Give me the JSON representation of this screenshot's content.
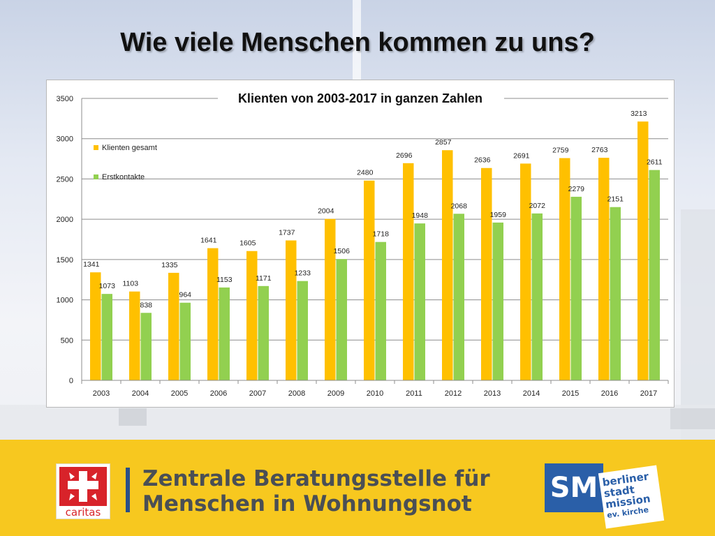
{
  "slide": {
    "title": "Wie viele Menschen kommen zu uns?"
  },
  "chart_data": {
    "type": "bar",
    "title": "Klienten von 2003-2017  in ganzen Zahlen",
    "xlabel": "",
    "ylabel": "",
    "ylim": [
      0,
      3500
    ],
    "yticks": [
      0,
      500,
      1000,
      1500,
      2000,
      2500,
      3000,
      3500
    ],
    "grid": true,
    "legend_position": "top-left",
    "categories": [
      "2003",
      "2004",
      "2005",
      "2006",
      "2007",
      "2008",
      "2009",
      "2010",
      "2011",
      "2012",
      "2013",
      "2014",
      "2015",
      "2016",
      "2017"
    ],
    "series": [
      {
        "name": "Klienten gesamt",
        "color": "#FFC000",
        "values": [
          1341,
          1103,
          1335,
          1641,
          1605,
          1737,
          2004,
          2480,
          2696,
          2857,
          2636,
          2691,
          2759,
          2763,
          3213
        ]
      },
      {
        "name": "Erstkontakte",
        "color": "#92D050",
        "values": [
          1073,
          838,
          964,
          1153,
          1171,
          1233,
          1506,
          1718,
          1948,
          2068,
          1959,
          2072,
          2279,
          2151,
          2611
        ]
      }
    ]
  },
  "footer": {
    "caritas_label": "caritas",
    "title_line1": "Zentrale Beratungsstelle für",
    "title_line2": "Menschen in Wohnungsnot",
    "sm_logo": "SM",
    "sm_line1": "berliner",
    "sm_line2": "stadt",
    "sm_line3": "mission",
    "sm_line4": "ev. kirche"
  }
}
